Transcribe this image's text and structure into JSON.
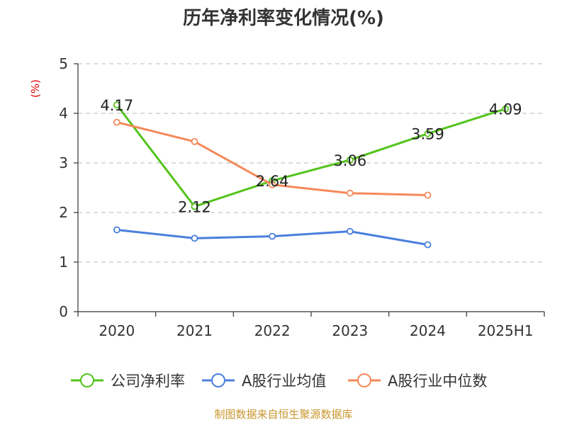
{
  "chart_data": {
    "type": "line",
    "title": "历年净利率变化情况(%)",
    "ylabel": "(%)",
    "xlabel": "",
    "categories": [
      "2020",
      "2021",
      "2022",
      "2023",
      "2024",
      "2025H1"
    ],
    "ylim": [
      0,
      5
    ],
    "yticks": [
      0,
      1,
      2,
      3,
      4,
      5
    ],
    "grid": true,
    "legend_position": "bottom",
    "series": [
      {
        "name": "公司净利率",
        "color": "#52c41a",
        "values": [
          4.17,
          2.12,
          2.64,
          3.06,
          3.59,
          4.09
        ],
        "labels": [
          "4.17",
          "2.12",
          "2.64",
          "3.06",
          "3.59",
          "4.09"
        ]
      },
      {
        "name": "A股行业均值",
        "color": "#4a7fdc",
        "values": [
          1.65,
          1.48,
          1.52,
          1.62,
          1.35,
          null
        ]
      },
      {
        "name": "A股行业中位数",
        "color": "#f5895a",
        "values": [
          3.82,
          3.43,
          2.56,
          2.39,
          2.35,
          null
        ]
      }
    ]
  },
  "footer": {
    "source": "制图数据来自恒生聚源数据库"
  }
}
